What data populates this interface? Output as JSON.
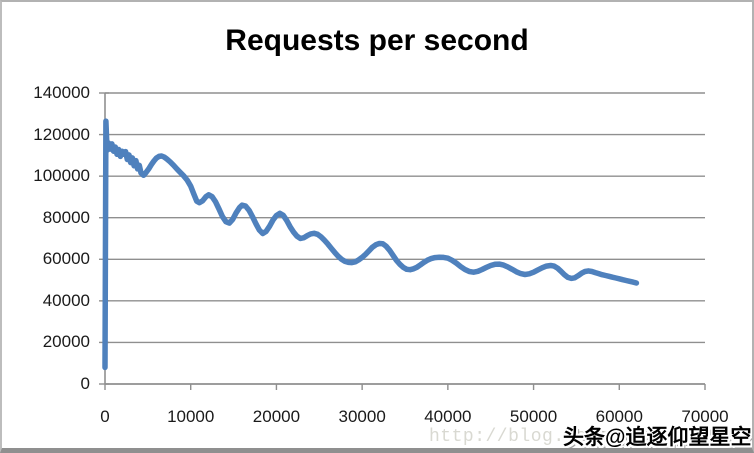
{
  "chart": {
    "title": "Requests per second",
    "colors": {
      "line": "#4F81BD",
      "gridline": "#8f8f8f",
      "axis": "#8f8f8f",
      "title_text": "#000000",
      "tick_text": "#1a1a1a",
      "frame_border": "#b2b2b2",
      "frame_bottom": "#8f8f8f",
      "background": "#ffffff"
    }
  },
  "watermarks": {
    "url": "http://blog.csdn.net",
    "badge": "头条@追逐仰望星空"
  },
  "chart_data": {
    "type": "line",
    "title": "Requests per second",
    "xlabel": "",
    "ylabel": "",
    "xlim": [
      0,
      70000
    ],
    "ylim": [
      0,
      140000
    ],
    "x_ticks": [
      0,
      10000,
      20000,
      30000,
      40000,
      50000,
      60000,
      70000
    ],
    "y_ticks": [
      0,
      20000,
      40000,
      60000,
      80000,
      100000,
      120000,
      140000
    ],
    "grid": "horizontal",
    "legend": "none",
    "series": [
      {
        "name": "Requests per second",
        "points": [
          [
            0,
            8000
          ],
          [
            100,
            126500
          ],
          [
            250,
            112500
          ],
          [
            400,
            116000
          ],
          [
            600,
            113000
          ],
          [
            800,
            115500
          ],
          [
            1000,
            112000
          ],
          [
            1200,
            114000
          ],
          [
            1400,
            110500
          ],
          [
            1600,
            112800
          ],
          [
            1800,
            109500
          ],
          [
            2000,
            112000
          ],
          [
            2200,
            110500
          ],
          [
            2400,
            111800
          ],
          [
            2600,
            108000
          ],
          [
            2800,
            110200
          ],
          [
            3000,
            106500
          ],
          [
            3200,
            108800
          ],
          [
            3400,
            105000
          ],
          [
            3600,
            107500
          ],
          [
            3800,
            103500
          ],
          [
            4000,
            105200
          ],
          [
            4200,
            101500
          ],
          [
            4500,
            100400
          ],
          [
            4800,
            101800
          ],
          [
            5100,
            103500
          ],
          [
            5400,
            105500
          ],
          [
            5700,
            107300
          ],
          [
            6000,
            108700
          ],
          [
            6300,
            109500
          ],
          [
            6600,
            109700
          ],
          [
            6900,
            109200
          ],
          [
            7200,
            108300
          ],
          [
            7600,
            106900
          ],
          [
            8000,
            105200
          ],
          [
            8400,
            103400
          ],
          [
            8800,
            101700
          ],
          [
            9200,
            100000
          ],
          [
            9600,
            98000
          ],
          [
            10000,
            95200
          ],
          [
            10350,
            91500
          ],
          [
            10700,
            88000
          ],
          [
            11000,
            87200
          ],
          [
            11400,
            88200
          ],
          [
            11800,
            90200
          ],
          [
            12100,
            91000
          ],
          [
            12500,
            90100
          ],
          [
            12900,
            87600
          ],
          [
            13300,
            84200
          ],
          [
            13700,
            80600
          ],
          [
            14100,
            78100
          ],
          [
            14500,
            77400
          ],
          [
            14900,
            79200
          ],
          [
            15300,
            82300
          ],
          [
            15700,
            84900
          ],
          [
            16000,
            86000
          ],
          [
            16400,
            85600
          ],
          [
            16800,
            83600
          ],
          [
            17200,
            80600
          ],
          [
            17600,
            77100
          ],
          [
            18000,
            74100
          ],
          [
            18400,
            72400
          ],
          [
            18800,
            73400
          ],
          [
            19200,
            75900
          ],
          [
            19600,
            78900
          ],
          [
            20000,
            81000
          ],
          [
            20400,
            82100
          ],
          [
            20800,
            81100
          ],
          [
            21200,
            78700
          ],
          [
            21600,
            75700
          ],
          [
            22000,
            73100
          ],
          [
            22400,
            71100
          ],
          [
            22800,
            70000
          ],
          [
            23200,
            70400
          ],
          [
            23600,
            71400
          ],
          [
            24000,
            72200
          ],
          [
            24400,
            72500
          ],
          [
            24800,
            72000
          ],
          [
            25200,
            70800
          ],
          [
            25600,
            69200
          ],
          [
            26000,
            67300
          ],
          [
            26400,
            65300
          ],
          [
            26800,
            63300
          ],
          [
            27200,
            61500
          ],
          [
            27600,
            60000
          ],
          [
            28000,
            59000
          ],
          [
            28400,
            58500
          ],
          [
            28800,
            58400
          ],
          [
            29200,
            58800
          ],
          [
            29600,
            59700
          ],
          [
            30000,
            60900
          ],
          [
            30400,
            62400
          ],
          [
            30800,
            64100
          ],
          [
            31200,
            65800
          ],
          [
            31600,
            67000
          ],
          [
            32000,
            67600
          ],
          [
            32400,
            67500
          ],
          [
            32800,
            66300
          ],
          [
            33200,
            64300
          ],
          [
            33600,
            61900
          ],
          [
            34000,
            59500
          ],
          [
            34400,
            57600
          ],
          [
            34800,
            56100
          ],
          [
            35200,
            55200
          ],
          [
            35600,
            55000
          ],
          [
            36000,
            55400
          ],
          [
            36400,
            56200
          ],
          [
            36800,
            57300
          ],
          [
            37200,
            58500
          ],
          [
            37600,
            59500
          ],
          [
            38000,
            60300
          ],
          [
            38500,
            60800
          ],
          [
            39000,
            61000
          ],
          [
            39500,
            60900
          ],
          [
            40000,
            60500
          ],
          [
            40500,
            59500
          ],
          [
            41000,
            58100
          ],
          [
            41500,
            56500
          ],
          [
            42000,
            55100
          ],
          [
            42500,
            54100
          ],
          [
            43000,
            53800
          ],
          [
            43500,
            54200
          ],
          [
            44000,
            55100
          ],
          [
            44500,
            56100
          ],
          [
            45000,
            57000
          ],
          [
            45500,
            57600
          ],
          [
            46000,
            57700
          ],
          [
            46500,
            57200
          ],
          [
            47000,
            56300
          ],
          [
            47500,
            55200
          ],
          [
            48000,
            54000
          ],
          [
            48500,
            53100
          ],
          [
            49000,
            52700
          ],
          [
            49500,
            53000
          ],
          [
            50000,
            53800
          ],
          [
            50500,
            54900
          ],
          [
            51000,
            55900
          ],
          [
            51500,
            56700
          ],
          [
            52000,
            57000
          ],
          [
            52400,
            56700
          ],
          [
            52800,
            55700
          ],
          [
            53200,
            54200
          ],
          [
            53600,
            52600
          ],
          [
            54000,
            51300
          ],
          [
            54400,
            50800
          ],
          [
            54800,
            51100
          ],
          [
            55200,
            52100
          ],
          [
            55600,
            53300
          ],
          [
            56000,
            54100
          ],
          [
            56400,
            54400
          ],
          [
            56800,
            54100
          ],
          [
            57200,
            53600
          ],
          [
            57600,
            53100
          ],
          [
            58000,
            52600
          ],
          [
            58400,
            52200
          ],
          [
            58800,
            51800
          ],
          [
            59200,
            51400
          ],
          [
            59600,
            51000
          ],
          [
            60000,
            50600
          ],
          [
            60400,
            50200
          ],
          [
            60800,
            49800
          ],
          [
            61200,
            49400
          ],
          [
            61600,
            49000
          ],
          [
            62000,
            48600
          ]
        ]
      }
    ]
  }
}
